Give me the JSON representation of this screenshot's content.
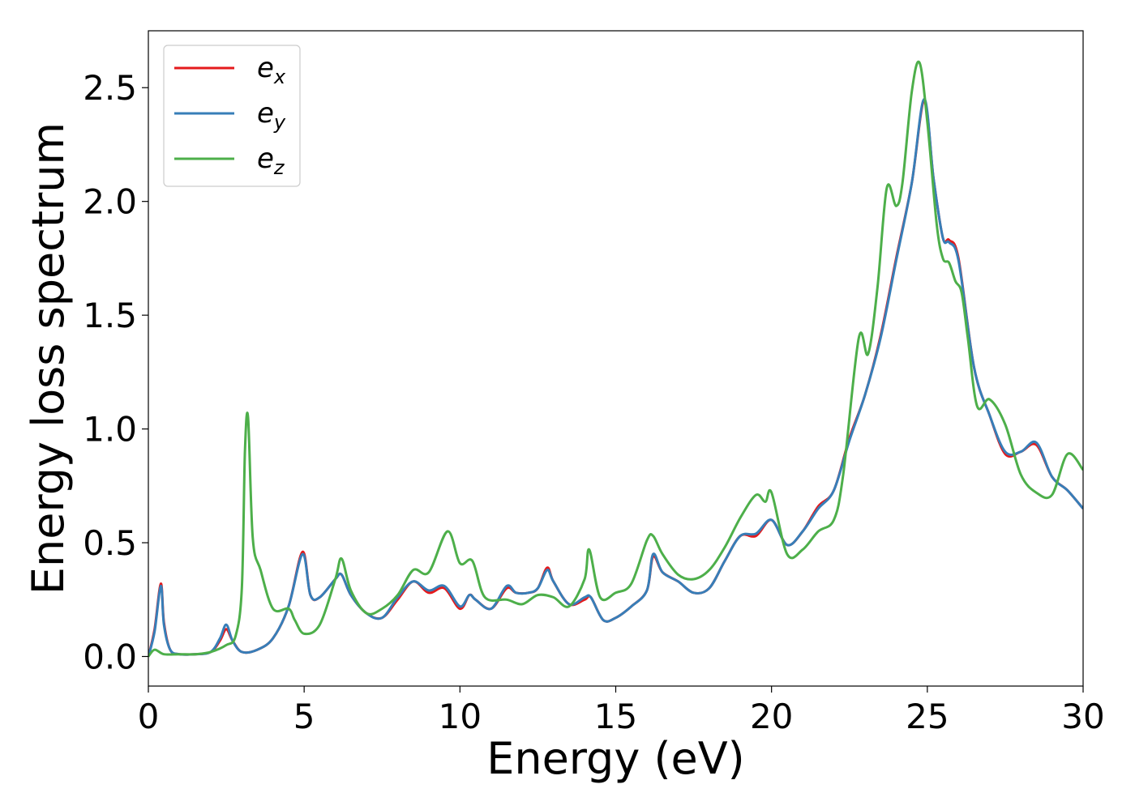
{
  "chart_data": {
    "type": "line",
    "xlabel": "Energy (eV)",
    "ylabel": "Energy loss spectrum",
    "xlim": [
      0,
      30
    ],
    "ylim": [
      -0.13,
      2.75
    ],
    "xticks": [
      0,
      5,
      10,
      15,
      20,
      25,
      30
    ],
    "xtick_labels": [
      "0",
      "5",
      "10",
      "15",
      "20",
      "25",
      "30"
    ],
    "yticks": [
      0.0,
      0.5,
      1.0,
      1.5,
      2.0,
      2.5
    ],
    "ytick_labels": [
      "0.0",
      "0.5",
      "1.0",
      "1.5",
      "2.0",
      "2.5"
    ],
    "grid": false,
    "legend_position": "upper-left",
    "series": [
      {
        "name": "e_x",
        "legend_main": "e",
        "legend_sub": "x",
        "color": "#e41a1c",
        "x": [
          0,
          0.2,
          0.4,
          0.5,
          0.7,
          1.0,
          1.5,
          2.0,
          2.3,
          2.5,
          2.7,
          3.0,
          3.5,
          4.0,
          4.5,
          4.95,
          5.2,
          5.5,
          6.0,
          6.2,
          6.5,
          7.0,
          7.5,
          8.0,
          8.5,
          9.0,
          9.5,
          10.0,
          10.3,
          10.5,
          11.0,
          11.5,
          11.8,
          12.2,
          12.5,
          12.8,
          13.0,
          13.5,
          14.0,
          14.2,
          14.6,
          15.0,
          15.5,
          16.0,
          16.2,
          16.5,
          17.0,
          17.5,
          18.0,
          18.5,
          19.0,
          19.5,
          20.0,
          20.5,
          21.0,
          21.5,
          22.0,
          22.5,
          23.0,
          23.5,
          24.0,
          24.5,
          24.9,
          25.2,
          25.5,
          25.7,
          26.0,
          26.5,
          27.0,
          27.5,
          28.0,
          28.5,
          29.0,
          29.5,
          30.0
        ],
        "values": [
          0.0,
          0.12,
          0.32,
          0.15,
          0.03,
          0.01,
          0.01,
          0.02,
          0.07,
          0.12,
          0.07,
          0.02,
          0.03,
          0.08,
          0.22,
          0.46,
          0.27,
          0.26,
          0.34,
          0.36,
          0.27,
          0.19,
          0.17,
          0.25,
          0.33,
          0.28,
          0.3,
          0.21,
          0.27,
          0.25,
          0.21,
          0.3,
          0.28,
          0.28,
          0.3,
          0.39,
          0.33,
          0.23,
          0.25,
          0.26,
          0.16,
          0.17,
          0.22,
          0.29,
          0.44,
          0.37,
          0.33,
          0.28,
          0.3,
          0.42,
          0.53,
          0.53,
          0.6,
          0.49,
          0.55,
          0.66,
          0.73,
          0.96,
          1.15,
          1.41,
          1.75,
          2.08,
          2.44,
          2.1,
          1.84,
          1.83,
          1.75,
          1.27,
          1.06,
          0.89,
          0.9,
          0.93,
          0.79,
          0.73,
          0.65
        ]
      },
      {
        "name": "e_y",
        "legend_main": "e",
        "legend_sub": "y",
        "color": "#377eb8",
        "x": [
          0,
          0.2,
          0.4,
          0.5,
          0.7,
          1.0,
          1.5,
          2.0,
          2.3,
          2.5,
          2.7,
          3.0,
          3.5,
          4.0,
          4.5,
          4.95,
          5.2,
          5.5,
          6.0,
          6.2,
          6.5,
          7.0,
          7.5,
          8.0,
          8.5,
          9.0,
          9.5,
          10.0,
          10.3,
          10.5,
          11.0,
          11.5,
          11.8,
          12.2,
          12.5,
          12.8,
          13.0,
          13.5,
          14.0,
          14.2,
          14.6,
          15.0,
          15.5,
          16.0,
          16.2,
          16.5,
          17.0,
          17.5,
          18.0,
          18.5,
          19.0,
          19.5,
          20.0,
          20.5,
          21.0,
          21.5,
          22.0,
          22.5,
          23.0,
          23.5,
          24.0,
          24.5,
          24.9,
          25.2,
          25.5,
          25.7,
          26.0,
          26.5,
          27.0,
          27.5,
          28.0,
          28.5,
          29.0,
          29.5,
          30.0
        ],
        "values": [
          0.0,
          0.11,
          0.31,
          0.14,
          0.03,
          0.01,
          0.01,
          0.02,
          0.08,
          0.14,
          0.07,
          0.02,
          0.03,
          0.08,
          0.22,
          0.45,
          0.27,
          0.26,
          0.34,
          0.36,
          0.27,
          0.19,
          0.17,
          0.26,
          0.33,
          0.29,
          0.31,
          0.22,
          0.27,
          0.25,
          0.21,
          0.31,
          0.28,
          0.28,
          0.3,
          0.38,
          0.33,
          0.23,
          0.26,
          0.26,
          0.16,
          0.17,
          0.22,
          0.29,
          0.45,
          0.37,
          0.33,
          0.28,
          0.3,
          0.42,
          0.53,
          0.54,
          0.6,
          0.49,
          0.55,
          0.65,
          0.73,
          0.95,
          1.15,
          1.4,
          1.74,
          2.08,
          2.45,
          2.1,
          1.84,
          1.82,
          1.74,
          1.27,
          1.06,
          0.9,
          0.9,
          0.94,
          0.79,
          0.73,
          0.65
        ]
      },
      {
        "name": "e_z",
        "legend_main": "e",
        "legend_sub": "z",
        "color": "#4daf4a",
        "x": [
          0,
          0.2,
          0.5,
          1.0,
          1.5,
          2.0,
          2.5,
          2.8,
          3.0,
          3.1,
          3.2,
          3.35,
          3.6,
          4.0,
          4.5,
          4.7,
          5.0,
          5.5,
          6.0,
          6.2,
          6.5,
          7.0,
          7.5,
          8.0,
          8.5,
          9.0,
          9.6,
          10.0,
          10.4,
          10.8,
          11.5,
          12.0,
          12.5,
          13.0,
          13.5,
          14.0,
          14.15,
          14.5,
          15.0,
          15.5,
          16.0,
          16.2,
          16.5,
          17.0,
          17.5,
          18.0,
          18.5,
          19.0,
          19.5,
          19.8,
          20.0,
          20.5,
          21.0,
          21.5,
          22.0,
          22.3,
          22.8,
          23.1,
          23.4,
          23.7,
          24.0,
          24.2,
          24.5,
          24.75,
          25.0,
          25.3,
          25.5,
          25.7,
          25.9,
          26.1,
          26.3,
          26.6,
          27.0,
          27.5,
          28.0,
          28.5,
          29.0,
          29.5,
          30.0
        ],
        "values": [
          0.0,
          0.03,
          0.01,
          0.01,
          0.01,
          0.02,
          0.05,
          0.09,
          0.3,
          0.9,
          1.05,
          0.52,
          0.38,
          0.21,
          0.21,
          0.16,
          0.1,
          0.14,
          0.34,
          0.43,
          0.29,
          0.19,
          0.21,
          0.27,
          0.38,
          0.37,
          0.55,
          0.41,
          0.42,
          0.26,
          0.25,
          0.23,
          0.27,
          0.26,
          0.22,
          0.34,
          0.47,
          0.26,
          0.28,
          0.32,
          0.51,
          0.53,
          0.45,
          0.36,
          0.34,
          0.38,
          0.48,
          0.61,
          0.71,
          0.68,
          0.72,
          0.45,
          0.47,
          0.55,
          0.6,
          0.8,
          1.4,
          1.33,
          1.62,
          2.06,
          1.98,
          2.08,
          2.48,
          2.61,
          2.35,
          1.9,
          1.75,
          1.73,
          1.65,
          1.6,
          1.4,
          1.1,
          1.13,
          1.02,
          0.8,
          0.72,
          0.71,
          0.89,
          0.82
        ]
      }
    ]
  }
}
